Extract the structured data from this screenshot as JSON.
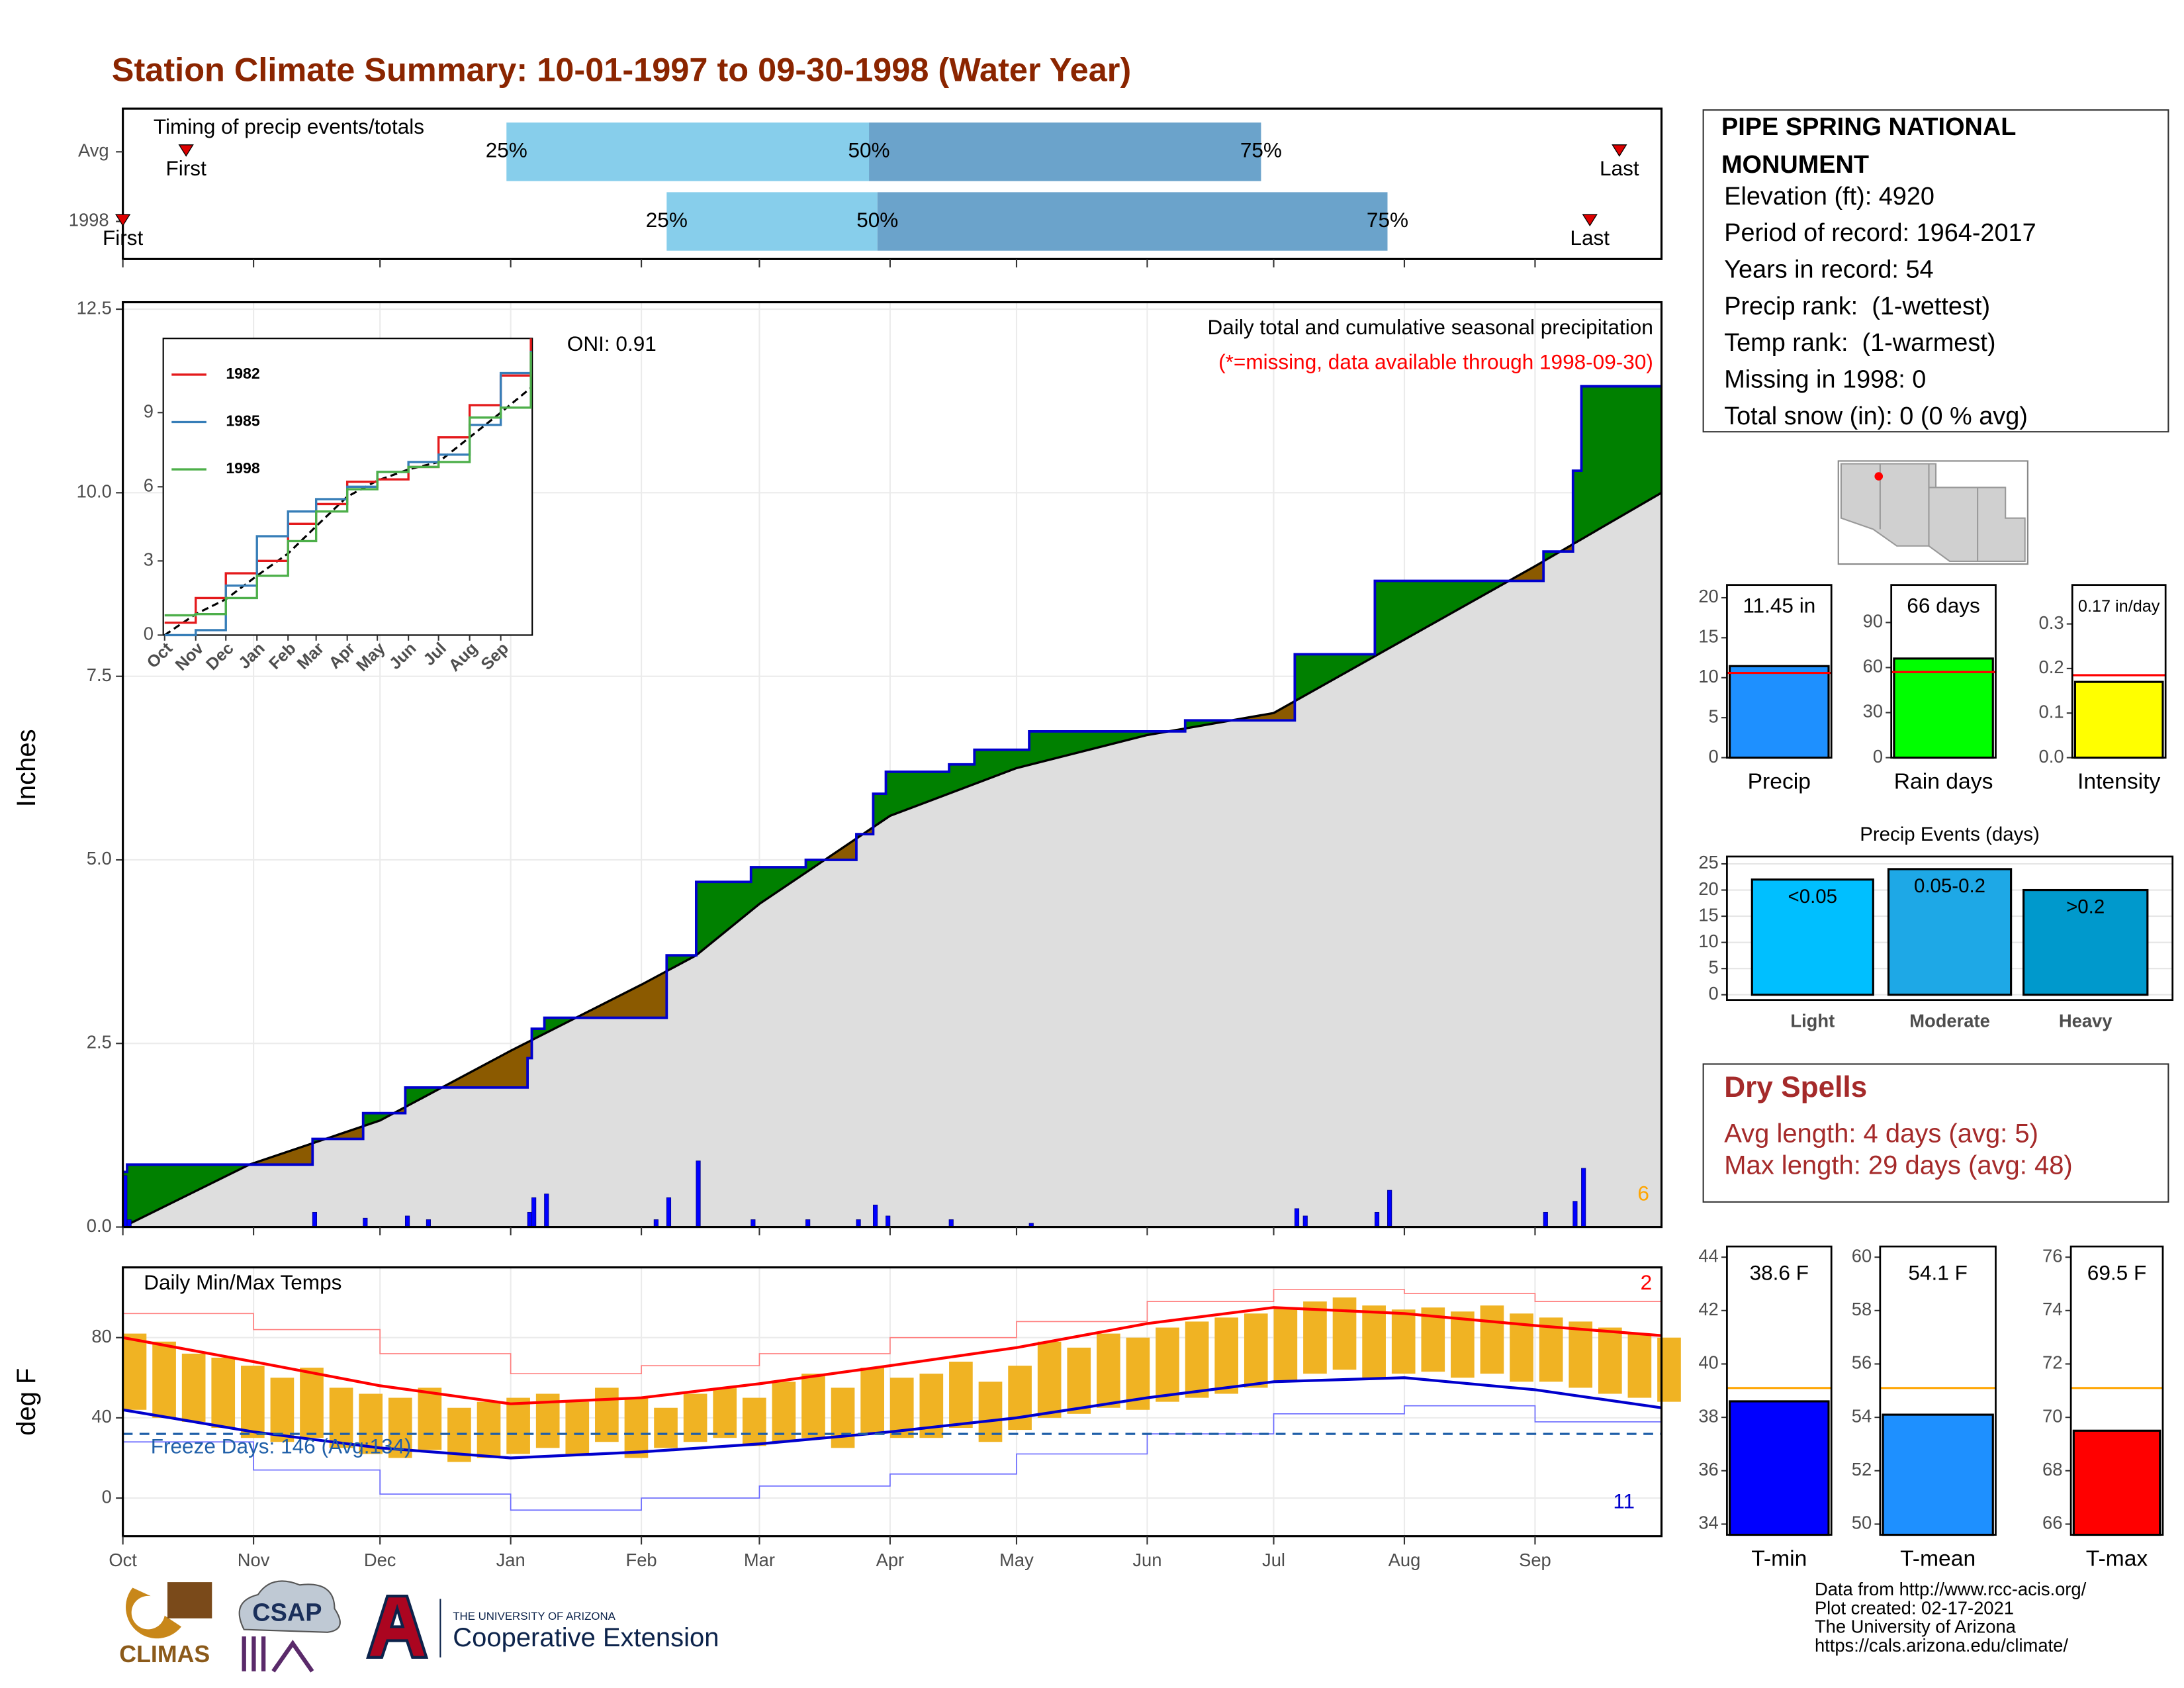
{
  "title": "Station Climate Summary: 10-01-1997 to 09-30-1998 (Water Year)",
  "station": {
    "name": "PIPE SPRING NATIONAL MONUMENT",
    "lines": [
      "Elevation (ft): 4920",
      "Period of record: 1964-2017",
      "Years in record: 54",
      "Precip rank:  (1-wettest)",
      "Temp rank:  (1-warmest)",
      "Missing in 1998: 0",
      "Total snow (in): 0 (0 % avg)"
    ]
  },
  "dry_spells": {
    "title": "Dry Spells",
    "lines": [
      "Avg length: 4 days (avg: 5)",
      "Max length: 29 days (avg: 48)"
    ]
  },
  "footer": {
    "logos": [
      "CLIMAS",
      "CSAP",
      "THE UNIVERSITY OF ARIZONA",
      "Cooperative Extension"
    ],
    "credits": [
      "Data from http://www.rcc-acis.org/",
      "Plot created: 02-17-2021",
      "The University of Arizona",
      "https://cals.arizona.edu/climate/"
    ]
  },
  "chart_data": [
    {
      "type": "timing",
      "title": "Timing of precip events/totals",
      "categories": [
        "Avg",
        "1998"
      ],
      "first": [
        15,
        0
      ],
      "p25": [
        91,
        129
      ],
      "p50": [
        177,
        179
      ],
      "p75": [
        270,
        300
      ],
      "last": [
        355,
        348
      ],
      "first_label": "First",
      "last_label": "Last",
      "p_labels": [
        "25%",
        "50%",
        "75%"
      ],
      "colors": [
        "#87ceeb",
        "#6ba3cb"
      ],
      "xlim": [
        0,
        365
      ],
      "xticks": [
        0,
        31,
        61,
        92,
        123,
        151,
        182,
        212,
        243,
        273,
        304,
        335
      ]
    },
    {
      "type": "cumulative",
      "title": "Daily total and cumulative seasonal precipitation",
      "subtitle": "(*=missing, data available through 1998-09-30)",
      "annotation": "ONI: 0.91",
      "count_label": 6,
      "ylabel": "Inches",
      "xlim": [
        0,
        365
      ],
      "xticks": [
        0,
        31,
        61,
        92,
        123,
        151,
        182,
        212,
        243,
        273,
        304,
        335
      ],
      "ylim": [
        0,
        12.5
      ],
      "yticks": [
        {
          "value": 0,
          "label": "0.0"
        },
        {
          "value": 2.5,
          "label": "2.5"
        },
        {
          "value": 5,
          "label": "5.0"
        },
        {
          "value": 7.5,
          "label": "7.5"
        },
        {
          "value": 10,
          "label": "10.0"
        },
        {
          "value": 12.5,
          "label": "12.5"
        }
      ],
      "observed": {
        "x": [
          0,
          1,
          45,
          57,
          67,
          96,
          97,
          100,
          129,
          136,
          149,
          162,
          174,
          178,
          181,
          196,
          202,
          215,
          252,
          278,
          297,
          324,
          337,
          344,
          346,
          365
        ],
        "values": [
          0.75,
          0.85,
          1.2,
          1.55,
          1.9,
          2.3,
          2.7,
          2.85,
          3.7,
          4.7,
          4.9,
          5.0,
          5.35,
          5.9,
          6.2,
          6.3,
          6.5,
          6.75,
          6.9,
          7.8,
          8.8,
          8.8,
          9.2,
          10.3,
          11.45,
          11.45
        ]
      },
      "average": {
        "x": [
          0,
          30,
          61,
          92,
          123,
          136,
          151,
          182,
          212,
          243,
          273,
          304,
          335,
          365
        ],
        "values": [
          0,
          0.85,
          1.45,
          2.4,
          3.3,
          3.7,
          4.4,
          5.6,
          6.25,
          6.7,
          7.0,
          8.0,
          9.0,
          10.0
        ]
      },
      "daily": {
        "x": [
          0,
          1,
          45,
          57,
          67,
          72,
          96,
          97,
          100,
          126,
          129,
          136,
          149,
          162,
          174,
          178,
          181,
          196,
          215,
          278,
          280,
          297,
          300,
          337,
          344,
          346
        ],
        "values": [
          0.7,
          0.1,
          0.2,
          0.12,
          0.15,
          0.1,
          0.2,
          0.4,
          0.45,
          0.1,
          0.4,
          0.9,
          0.1,
          0.1,
          0.1,
          0.3,
          0.15,
          0.1,
          0.05,
          0.25,
          0.15,
          0.2,
          0.5,
          0.2,
          0.35,
          0.8
        ]
      },
      "colors": {
        "above": "#008000",
        "below": "#8b5a00",
        "base": "#dedede",
        "line": "#0000cd",
        "bars": "#0000ff",
        "count": "#ffa500"
      }
    },
    {
      "type": "line",
      "x": [
        0,
        31,
        61,
        92,
        123,
        151,
        182,
        212,
        243,
        273,
        304,
        335,
        365
      ],
      "series": [
        {
          "name": "1982",
          "color": "#e41a1c",
          "values": [
            0.5,
            1.5,
            2.5,
            3.0,
            4.5,
            5.3,
            6.2,
            6.3,
            6.8,
            8.0,
            9.3,
            10.5,
            12.0
          ]
        },
        {
          "name": "1985",
          "color": "#377eb8",
          "values": [
            0,
            0.2,
            2.0,
            4.0,
            5.0,
            5.5,
            6.0,
            6.6,
            7.0,
            7.3,
            8.5,
            10.6,
            11.5
          ]
        },
        {
          "name": "1998",
          "color": "#4daf4a",
          "values": [
            0.8,
            0.85,
            1.5,
            2.4,
            3.8,
            5.0,
            5.9,
            6.6,
            6.8,
            7.0,
            8.8,
            9.2,
            11.45
          ]
        }
      ],
      "average_values": [
        0,
        0.85,
        1.45,
        2.4,
        3.3,
        4.4,
        5.6,
        6.25,
        6.7,
        7.0,
        8.0,
        9.0,
        10.0
      ],
      "xlim": [
        0,
        365
      ],
      "xticks": [
        {
          "value": 0,
          "label": "Oct"
        },
        {
          "value": 31,
          "label": "Nov"
        },
        {
          "value": 61,
          "label": "Dec"
        },
        {
          "value": 92,
          "label": "Jan"
        },
        {
          "value": 123,
          "label": "Feb"
        },
        {
          "value": 151,
          "label": "Mar"
        },
        {
          "value": 182,
          "label": "Apr"
        },
        {
          "value": 212,
          "label": "May"
        },
        {
          "value": 243,
          "label": "Jun"
        },
        {
          "value": 273,
          "label": "Jul"
        },
        {
          "value": 304,
          "label": "Aug"
        },
        {
          "value": 335,
          "label": "Sep"
        }
      ],
      "ylim": [
        0,
        12
      ],
      "yticks": [
        0,
        3,
        6,
        9
      ]
    },
    {
      "type": "temperature",
      "title": "Daily Min/Max Temps",
      "ylabel": "deg F",
      "ylim": [
        -19,
        115
      ],
      "yticks": [
        0,
        40,
        80
      ],
      "xlim": [
        0,
        365
      ],
      "xticks": [
        {
          "value": 0,
          "label": "Oct"
        },
        {
          "value": 31,
          "label": "Nov"
        },
        {
          "value": 61,
          "label": "Dec"
        },
        {
          "value": 92,
          "label": "Jan"
        },
        {
          "value": 123,
          "label": "Feb"
        },
        {
          "value": 151,
          "label": "Mar"
        },
        {
          "value": 182,
          "label": "Apr"
        },
        {
          "value": 212,
          "label": "May"
        },
        {
          "value": 243,
          "label": "Jun"
        },
        {
          "value": 273,
          "label": "Jul"
        },
        {
          "value": 304,
          "label": "Aug"
        },
        {
          "value": 335,
          "label": "Sep"
        }
      ],
      "freeze_line": 32,
      "freeze_label": "Freeze Days: 146 (Avg:134)",
      "record_high_count": 2,
      "record_low_count": 11,
      "daily": {
        "x": [
          0,
          7,
          14,
          21,
          28,
          35,
          42,
          49,
          56,
          63,
          70,
          77,
          84,
          91,
          98,
          105,
          112,
          119,
          126,
          133,
          140,
          147,
          154,
          161,
          168,
          175,
          182,
          189,
          196,
          203,
          210,
          217,
          224,
          231,
          238,
          245,
          252,
          259,
          266,
          273,
          280,
          287,
          294,
          301,
          308,
          315,
          322,
          329,
          336,
          343,
          350,
          357,
          364
        ],
        "max": [
          82,
          78,
          72,
          70,
          66,
          60,
          65,
          55,
          52,
          50,
          55,
          45,
          48,
          50,
          52,
          48,
          55,
          50,
          45,
          52,
          55,
          50,
          58,
          62,
          55,
          65,
          60,
          62,
          68,
          58,
          66,
          78,
          75,
          82,
          80,
          85,
          88,
          90,
          92,
          95,
          98,
          100,
          96,
          94,
          95,
          93,
          96,
          92,
          90,
          88,
          85,
          82,
          80
        ],
        "min": [
          44,
          40,
          38,
          35,
          30,
          28,
          30,
          25,
          22,
          20,
          24,
          18,
          20,
          22,
          25,
          22,
          28,
          20,
          25,
          28,
          30,
          26,
          28,
          30,
          25,
          32,
          30,
          30,
          35,
          28,
          34,
          40,
          42,
          45,
          44,
          48,
          50,
          52,
          55,
          58,
          62,
          64,
          60,
          62,
          63,
          60,
          62,
          58,
          58,
          55,
          52,
          50,
          48
        ]
      },
      "normal_x": [
        0,
        31,
        61,
        92,
        123,
        151,
        182,
        212,
        243,
        273,
        304,
        335,
        365
      ],
      "normal_max": [
        80,
        68,
        56,
        47,
        50,
        57,
        66,
        75,
        87,
        95,
        92,
        86,
        81
      ],
      "normal_min": [
        44,
        33,
        25,
        20,
        23,
        27,
        33,
        40,
        50,
        58,
        60,
        54,
        45
      ],
      "record_max": [
        92,
        84,
        72,
        62,
        66,
        72,
        80,
        88,
        98,
        104,
        102,
        98,
        92
      ],
      "record_min": [
        28,
        14,
        2,
        -6,
        0,
        6,
        12,
        22,
        32,
        42,
        46,
        38,
        30
      ],
      "colors": {
        "bars": "#f0b323",
        "normal_max": "#ff0000",
        "normal_min": "#0000cd",
        "record_max": "#ff8080",
        "record_min": "#6a6aff",
        "freeze": "#1f5fa8"
      }
    },
    {
      "type": "bar",
      "categories": [
        "Precip"
      ],
      "values": [
        11.45
      ],
      "value_labels": [
        "11.45 in"
      ],
      "average": 10.6,
      "color": "#1e90ff",
      "average_color": "#ff0000",
      "ylim": [
        0,
        21.6
      ],
      "yticks": [
        0,
        5,
        10,
        15,
        20
      ]
    },
    {
      "type": "bar",
      "categories": [
        "Rain days"
      ],
      "values": [
        66
      ],
      "value_labels": [
        "66 days"
      ],
      "average": 57,
      "color": "#00ff00",
      "average_color": "#ff0000",
      "ylim": [
        0,
        115
      ],
      "yticks": [
        0,
        30,
        60,
        90
      ]
    },
    {
      "type": "bar",
      "categories": [
        "Intensity"
      ],
      "values": [
        0.17
      ],
      "value_labels": [
        "0.17 in/day"
      ],
      "average": 0.185,
      "color": "#ffff00",
      "average_color": "#ff0000",
      "ylim": [
        0,
        0.3875
      ],
      "yticks": [
        {
          "value": 0,
          "label": "0.0"
        },
        0.1,
        0.2,
        0.3
      ]
    },
    {
      "type": "bar",
      "title": "Precip Events (days)",
      "categories": [
        "Light",
        "Moderate",
        "Heavy"
      ],
      "values": [
        22,
        24,
        20
      ],
      "bin_labels": [
        "<0.05",
        "0.05-0.2",
        ">0.2"
      ],
      "colors": [
        "#00bfff",
        "#1ea8e6",
        "#0099cc"
      ],
      "ylim": [
        -1,
        26.4
      ],
      "yticks": [
        0,
        5,
        10,
        15,
        20,
        25
      ]
    },
    {
      "type": "bar",
      "categories": [
        "T-min"
      ],
      "values": [
        38.6
      ],
      "value_labels": [
        "38.6 F"
      ],
      "average": 39.1,
      "color": "#0000ff",
      "average_color": "#ffa500",
      "ylim": [
        33.6,
        44.4
      ],
      "yticks": [
        34,
        36,
        38,
        40,
        42,
        44
      ]
    },
    {
      "type": "bar",
      "categories": [
        "T-mean"
      ],
      "values": [
        54.1
      ],
      "value_labels": [
        "54.1 F"
      ],
      "average": 55.1,
      "color": "#1e90ff",
      "average_color": "#ffa500",
      "ylim": [
        49.6,
        60.4
      ],
      "yticks": [
        50,
        52,
        54,
        56,
        58,
        60
      ]
    },
    {
      "type": "bar",
      "categories": [
        "T-max"
      ],
      "values": [
        69.5
      ],
      "value_labels": [
        "69.5 F"
      ],
      "average": 71.1,
      "color": "#ff0000",
      "average_color": "#ffa500",
      "ylim": [
        65.6,
        76.4
      ],
      "yticks": [
        66,
        68,
        70,
        72,
        74,
        76
      ]
    }
  ]
}
